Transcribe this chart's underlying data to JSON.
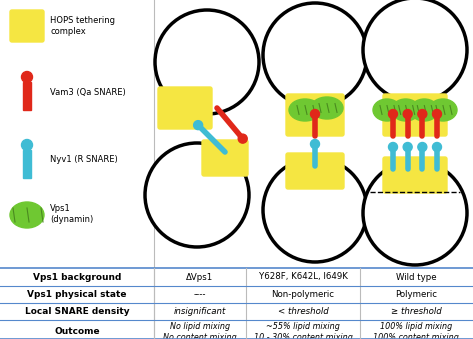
{
  "bg_color": "#ffffff",
  "hops_color": "#f5e642",
  "vam3_color": "#e0281a",
  "nyv1_color": "#3fbcd4",
  "vps1_color": "#6fc832",
  "vps1_dark": "#4a8a20",
  "circle_lw": 2.5,
  "table_rows": [
    {
      "label": "Vps1 background",
      "values": [
        "ΔVps1",
        "Y628F, K642L, I649K",
        "Wild type"
      ],
      "italic": false
    },
    {
      "label": "Vps1 physical state",
      "values": [
        "----",
        "Non-polymeric",
        "Polymeric"
      ],
      "italic": false
    },
    {
      "label": "Local SNARE density",
      "values": [
        "insignificant",
        "< threshold",
        "≥ threshold"
      ],
      "italic": true
    },
    {
      "label": "Outcome",
      "values": [
        "No lipid mixing\nNo content mixing",
        "~55% lipid mixing\n10 - 30% content mixing",
        "100% lipid mixing\n100% content mixing"
      ],
      "italic": true
    }
  ]
}
